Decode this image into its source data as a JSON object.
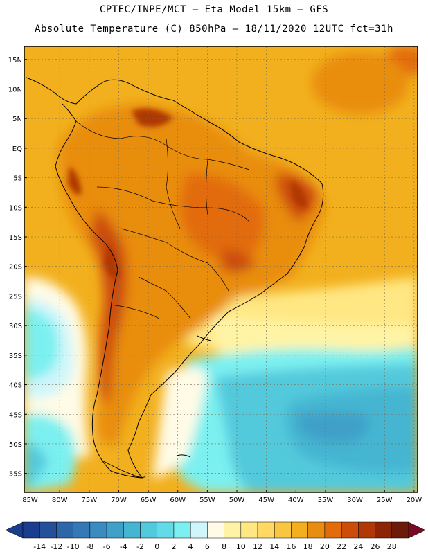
{
  "title_line1": "CPTEC/INPE/MCT –  Eta Model 15km – GFS",
  "title_line2": "Absolute Temperature (C) 850hPa – 18/11/2020 12UTC fct=31h",
  "map": {
    "lat_labels": [
      "15N",
      "10N",
      "5N",
      "EQ",
      "5S",
      "10S",
      "15S",
      "20S",
      "25S",
      "30S",
      "35S",
      "40S",
      "45S",
      "50S",
      "55S"
    ],
    "lon_labels": [
      "85W",
      "80W",
      "75W",
      "70W",
      "65W",
      "60W",
      "55W",
      "50W",
      "45W",
      "40W",
      "35W",
      "30W",
      "25W",
      "20W"
    ]
  },
  "colorbar": {
    "labels": [
      "-14",
      "-12",
      "-10",
      "-8",
      "-6",
      "-4",
      "-2",
      "0",
      "2",
      "4",
      "6",
      "8",
      "10",
      "12",
      "14",
      "16",
      "18",
      "20",
      "22",
      "24",
      "26",
      "28"
    ],
    "colors": [
      "#1b3d8f",
      "#24509a",
      "#2e66aa",
      "#3478b5",
      "#3a8cc0",
      "#3fa0c8",
      "#45b5d2",
      "#52c9dc",
      "#63dbe6",
      "#7cf0f0",
      "#cff6fb",
      "#fffbe6",
      "#fff4a6",
      "#ffe783",
      "#ffd964",
      "#f8c640",
      "#f2b01e",
      "#e98d10",
      "#e26c0c",
      "#cc4c0a",
      "#b03806",
      "#8e2406",
      "#6e1a0a"
    ]
  }
}
